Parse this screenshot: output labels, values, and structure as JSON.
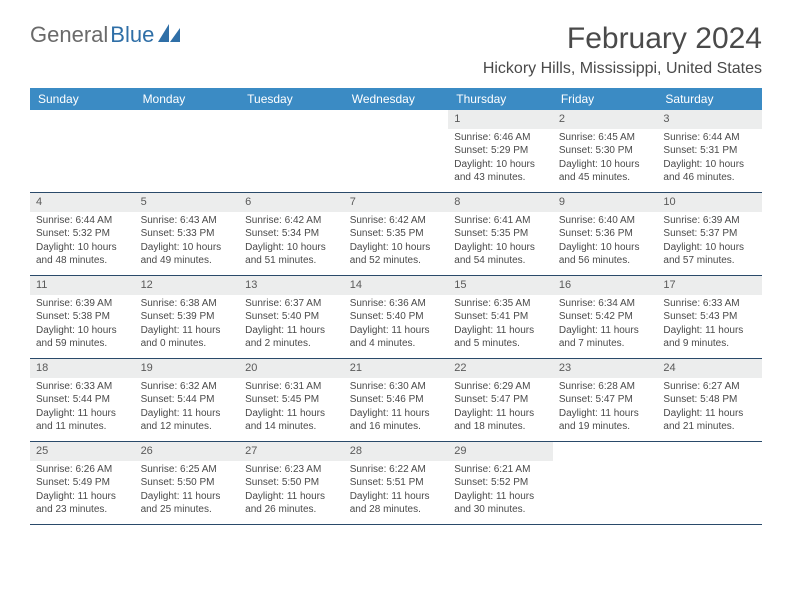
{
  "logo": {
    "text1": "General",
    "text2": "Blue"
  },
  "title": "February 2024",
  "location": "Hickory Hills, Mississippi, United States",
  "colors": {
    "header_bg": "#3b8bc4",
    "header_text": "#ffffff",
    "daynum_bg": "#eceded",
    "cell_text": "#4a4a4a",
    "rule": "#2a4a6a",
    "logo_gray": "#6a6a6a",
    "logo_blue": "#2f6fa7"
  },
  "typography": {
    "title_fontsize": 30,
    "location_fontsize": 16,
    "header_fontsize": 12,
    "daynum_fontsize": 11,
    "detail_fontsize": 10
  },
  "day_names": [
    "Sunday",
    "Monday",
    "Tuesday",
    "Wednesday",
    "Thursday",
    "Friday",
    "Saturday"
  ],
  "weeks": [
    [
      null,
      null,
      null,
      null,
      {
        "n": "1",
        "sr": "Sunrise: 6:46 AM",
        "ss": "Sunset: 5:29 PM",
        "dl": "Daylight: 10 hours and 43 minutes."
      },
      {
        "n": "2",
        "sr": "Sunrise: 6:45 AM",
        "ss": "Sunset: 5:30 PM",
        "dl": "Daylight: 10 hours and 45 minutes."
      },
      {
        "n": "3",
        "sr": "Sunrise: 6:44 AM",
        "ss": "Sunset: 5:31 PM",
        "dl": "Daylight: 10 hours and 46 minutes."
      }
    ],
    [
      {
        "n": "4",
        "sr": "Sunrise: 6:44 AM",
        "ss": "Sunset: 5:32 PM",
        "dl": "Daylight: 10 hours and 48 minutes."
      },
      {
        "n": "5",
        "sr": "Sunrise: 6:43 AM",
        "ss": "Sunset: 5:33 PM",
        "dl": "Daylight: 10 hours and 49 minutes."
      },
      {
        "n": "6",
        "sr": "Sunrise: 6:42 AM",
        "ss": "Sunset: 5:34 PM",
        "dl": "Daylight: 10 hours and 51 minutes."
      },
      {
        "n": "7",
        "sr": "Sunrise: 6:42 AM",
        "ss": "Sunset: 5:35 PM",
        "dl": "Daylight: 10 hours and 52 minutes."
      },
      {
        "n": "8",
        "sr": "Sunrise: 6:41 AM",
        "ss": "Sunset: 5:35 PM",
        "dl": "Daylight: 10 hours and 54 minutes."
      },
      {
        "n": "9",
        "sr": "Sunrise: 6:40 AM",
        "ss": "Sunset: 5:36 PM",
        "dl": "Daylight: 10 hours and 56 minutes."
      },
      {
        "n": "10",
        "sr": "Sunrise: 6:39 AM",
        "ss": "Sunset: 5:37 PM",
        "dl": "Daylight: 10 hours and 57 minutes."
      }
    ],
    [
      {
        "n": "11",
        "sr": "Sunrise: 6:39 AM",
        "ss": "Sunset: 5:38 PM",
        "dl": "Daylight: 10 hours and 59 minutes."
      },
      {
        "n": "12",
        "sr": "Sunrise: 6:38 AM",
        "ss": "Sunset: 5:39 PM",
        "dl": "Daylight: 11 hours and 0 minutes."
      },
      {
        "n": "13",
        "sr": "Sunrise: 6:37 AM",
        "ss": "Sunset: 5:40 PM",
        "dl": "Daylight: 11 hours and 2 minutes."
      },
      {
        "n": "14",
        "sr": "Sunrise: 6:36 AM",
        "ss": "Sunset: 5:40 PM",
        "dl": "Daylight: 11 hours and 4 minutes."
      },
      {
        "n": "15",
        "sr": "Sunrise: 6:35 AM",
        "ss": "Sunset: 5:41 PM",
        "dl": "Daylight: 11 hours and 5 minutes."
      },
      {
        "n": "16",
        "sr": "Sunrise: 6:34 AM",
        "ss": "Sunset: 5:42 PM",
        "dl": "Daylight: 11 hours and 7 minutes."
      },
      {
        "n": "17",
        "sr": "Sunrise: 6:33 AM",
        "ss": "Sunset: 5:43 PM",
        "dl": "Daylight: 11 hours and 9 minutes."
      }
    ],
    [
      {
        "n": "18",
        "sr": "Sunrise: 6:33 AM",
        "ss": "Sunset: 5:44 PM",
        "dl": "Daylight: 11 hours and 11 minutes."
      },
      {
        "n": "19",
        "sr": "Sunrise: 6:32 AM",
        "ss": "Sunset: 5:44 PM",
        "dl": "Daylight: 11 hours and 12 minutes."
      },
      {
        "n": "20",
        "sr": "Sunrise: 6:31 AM",
        "ss": "Sunset: 5:45 PM",
        "dl": "Daylight: 11 hours and 14 minutes."
      },
      {
        "n": "21",
        "sr": "Sunrise: 6:30 AM",
        "ss": "Sunset: 5:46 PM",
        "dl": "Daylight: 11 hours and 16 minutes."
      },
      {
        "n": "22",
        "sr": "Sunrise: 6:29 AM",
        "ss": "Sunset: 5:47 PM",
        "dl": "Daylight: 11 hours and 18 minutes."
      },
      {
        "n": "23",
        "sr": "Sunrise: 6:28 AM",
        "ss": "Sunset: 5:47 PM",
        "dl": "Daylight: 11 hours and 19 minutes."
      },
      {
        "n": "24",
        "sr": "Sunrise: 6:27 AM",
        "ss": "Sunset: 5:48 PM",
        "dl": "Daylight: 11 hours and 21 minutes."
      }
    ],
    [
      {
        "n": "25",
        "sr": "Sunrise: 6:26 AM",
        "ss": "Sunset: 5:49 PM",
        "dl": "Daylight: 11 hours and 23 minutes."
      },
      {
        "n": "26",
        "sr": "Sunrise: 6:25 AM",
        "ss": "Sunset: 5:50 PM",
        "dl": "Daylight: 11 hours and 25 minutes."
      },
      {
        "n": "27",
        "sr": "Sunrise: 6:23 AM",
        "ss": "Sunset: 5:50 PM",
        "dl": "Daylight: 11 hours and 26 minutes."
      },
      {
        "n": "28",
        "sr": "Sunrise: 6:22 AM",
        "ss": "Sunset: 5:51 PM",
        "dl": "Daylight: 11 hours and 28 minutes."
      },
      {
        "n": "29",
        "sr": "Sunrise: 6:21 AM",
        "ss": "Sunset: 5:52 PM",
        "dl": "Daylight: 11 hours and 30 minutes."
      },
      null,
      null
    ]
  ]
}
